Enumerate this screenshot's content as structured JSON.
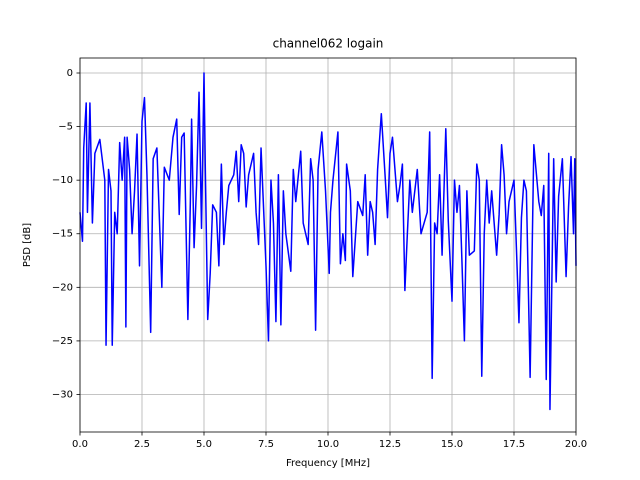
{
  "chart_data": {
    "type": "line",
    "title": "channel062 logain",
    "x_label": "Frequency [MHz]",
    "y_label": "PSD [dB]",
    "x": [
      0,
      0.1,
      0.15,
      0.25,
      0.3,
      0.4,
      0.5,
      0.6,
      0.8,
      1.0,
      1.05,
      1.15,
      1.25,
      1.3,
      1.4,
      1.5,
      1.6,
      1.7,
      1.8,
      1.85,
      1.9,
      2.0,
      2.1,
      2.2,
      2.3,
      2.4,
      2.5,
      2.6,
      2.7,
      2.85,
      2.95,
      3.1,
      3.3,
      3.4,
      3.6,
      3.75,
      3.9,
      4.0,
      4.1,
      4.2,
      4.35,
      4.45,
      4.5,
      4.6,
      4.7,
      4.8,
      4.9,
      5.0,
      5.05,
      5.15,
      5.25,
      5.35,
      5.5,
      5.6,
      5.7,
      5.8,
      5.9,
      6.0,
      6.2,
      6.3,
      6.4,
      6.5,
      6.6,
      6.7,
      6.8,
      7.0,
      7.1,
      7.2,
      7.3,
      7.5,
      7.6,
      7.7,
      7.8,
      7.9,
      8.0,
      8.1,
      8.2,
      8.3,
      8.5,
      8.6,
      8.7,
      8.9,
      9.0,
      9.2,
      9.3,
      9.4,
      9.5,
      9.6,
      9.75,
      9.9,
      10.05,
      10.1,
      10.2,
      10.4,
      10.5,
      10.6,
      10.7,
      10.75,
      10.9,
      11.0,
      11.2,
      11.4,
      11.5,
      11.6,
      11.7,
      11.8,
      11.9,
      12.0,
      12.1,
      12.15,
      12.3,
      12.4,
      12.5,
      12.6,
      12.8,
      12.9,
      13.0,
      13.1,
      13.2,
      13.3,
      13.4,
      13.6,
      13.75,
      14.0,
      14.1,
      14.2,
      14.3,
      14.4,
      14.5,
      14.6,
      14.75,
      14.85,
      15.0,
      15.1,
      15.2,
      15.3,
      15.4,
      15.5,
      15.6,
      15.7,
      15.9,
      16.0,
      16.1,
      16.2,
      16.3,
      16.4,
      16.5,
      16.6,
      16.8,
      16.9,
      17.0,
      17.1,
      17.2,
      17.3,
      17.5,
      17.6,
      17.7,
      17.8,
      17.9,
      18.0,
      18.15,
      18.3,
      18.5,
      18.6,
      18.7,
      18.8,
      18.9,
      18.95,
      19.1,
      19.2,
      19.3,
      19.45,
      19.6,
      19.7,
      19.8,
      19.9,
      19.95,
      20.0
    ],
    "values": [
      -13,
      -15.7,
      -7,
      -2.8,
      -13,
      -2.8,
      -14,
      -7.5,
      -6.2,
      -10,
      -25.4,
      -9,
      -11,
      -25.4,
      -13,
      -15,
      -6.5,
      -10,
      -6,
      -23.7,
      -6,
      -9,
      -15,
      -11,
      -5.7,
      -18,
      -4.5,
      -2.3,
      -9.5,
      -24.2,
      -8,
      -7,
      -20,
      -8.8,
      -10,
      -6,
      -4.3,
      -13.2,
      -6,
      -5.6,
      -23,
      -12,
      -4.3,
      -16.3,
      -10.5,
      -1.8,
      -14.5,
      0,
      -8.5,
      -23,
      -18.7,
      -12.3,
      -13,
      -18,
      -8.5,
      -16,
      -13,
      -10.5,
      -9.5,
      -7.3,
      -12,
      -6.7,
      -7.5,
      -12.5,
      -9.5,
      -7.5,
      -13,
      -16,
      -7,
      -18,
      -25,
      -10,
      -14,
      -23.2,
      -9.5,
      -23.5,
      -11,
      -15,
      -18.5,
      -9,
      -12,
      -7.3,
      -14,
      -16,
      -8,
      -10,
      -24,
      -9,
      -5.5,
      -11,
      -18.7,
      -13,
      -10,
      -5.5,
      -17.8,
      -15,
      -17.5,
      -8.5,
      -11,
      -19,
      -12,
      -13.3,
      -9.5,
      -17,
      -12,
      -13,
      -16,
      -9,
      -5.5,
      -3.8,
      -9.5,
      -13.5,
      -7.5,
      -6,
      -12,
      -10.5,
      -8.5,
      -20.3,
      -15,
      -10,
      -13,
      -9,
      -15,
      -13,
      -5.5,
      -28.5,
      -14,
      -15,
      -9.5,
      -17,
      -5.2,
      -13.8,
      -21.3,
      -10,
      -13,
      -10.5,
      -17.5,
      -25,
      -11,
      -17,
      -16.6,
      -8.5,
      -10,
      -28.3,
      -15,
      -10,
      -14,
      -11,
      -17,
      -13.2,
      -6.7,
      -9.5,
      -15,
      -12,
      -10,
      -16.5,
      -23.3,
      -13.5,
      -10,
      -11,
      -28.4,
      -6.7,
      -12,
      -13.3,
      -10.5,
      -28.6,
      -7.5,
      -31.4,
      -8,
      -19.5,
      -11.5,
      -8,
      -19,
      -12.5,
      -7.8,
      -15,
      -8,
      -18
    ],
    "color": "#0000ff",
    "xlim": [
      0,
      20
    ],
    "ylim": [
      -33.5,
      1.4
    ],
    "xticks": [
      {
        "value": 0,
        "label": "0.0"
      },
      2.5,
      {
        "value": 5,
        "label": "5.0"
      },
      7.5,
      {
        "value": 10,
        "label": "10.0"
      },
      12.5,
      {
        "value": 15,
        "label": "15.0"
      },
      17.5,
      {
        "value": 20,
        "label": "20.0"
      }
    ],
    "yticks": [
      {
        "value": -30,
        "label": "−30"
      },
      {
        "value": -25,
        "label": "−25"
      },
      {
        "value": -20,
        "label": "−20"
      },
      {
        "value": -15,
        "label": "−15"
      },
      {
        "value": -10,
        "label": "−10"
      },
      {
        "value": -5,
        "label": "−5"
      },
      0
    ],
    "grid": true
  }
}
